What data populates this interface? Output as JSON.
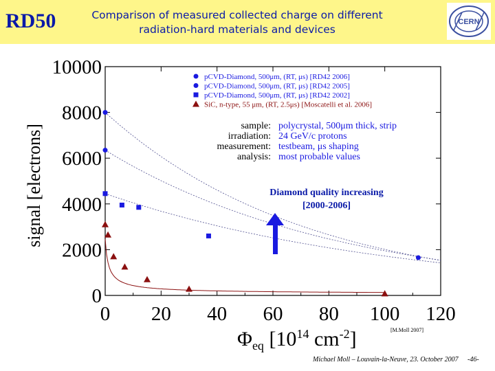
{
  "header": {
    "badge": "RD50",
    "title_line1": "Comparison of measured collected charge on different",
    "title_line2": "radiation-hard materials and devices",
    "logo_text": "CERN"
  },
  "footer": {
    "credit": "Michael Moll – Louvain-la-Neuve, 23. October 2007",
    "page": "-46-"
  },
  "colors": {
    "blue": "#1a1ae0",
    "darkred": "#8b1010",
    "header_bg": "#fef68a",
    "title_text": "#0a1aa8"
  },
  "chart_data": {
    "type": "scatter",
    "xlabel_base": "Φ",
    "xlabel_sub": "eq",
    "xlabel_rest": "  [10",
    "xlabel_sup": "14",
    "xlabel_unit": " cm",
    "xlabel_unit_sup": "-2",
    "xlabel_close": "]",
    "ylabel": "signal [electrons]",
    "xlim": [
      0,
      120
    ],
    "ylim": [
      0,
      10000
    ],
    "xticks": [
      "0",
      "20",
      "40",
      "60",
      "80",
      "100",
      "120"
    ],
    "yticks": [
      "0",
      "2000",
      "4000",
      "6000",
      "8000",
      "10000"
    ],
    "series": [
      {
        "name": "pCVD-Diamond, 500μm, (RT, μs) [RD42 2006]",
        "marker": "circle",
        "color": "#1a1ae0",
        "points": [
          [
            0,
            8000
          ],
          [
            112,
            1650
          ]
        ]
      },
      {
        "name": "pCVD-Diamond, 500μm, (RT, μs) [RD42 2005]",
        "marker": "circle",
        "color": "#1a1ae0",
        "points": [
          [
            0,
            6350
          ]
        ]
      },
      {
        "name": "pCVD-Diamond, 500μm, (RT, μs) [RD42 2002]",
        "marker": "square",
        "color": "#1a1ae0",
        "points": [
          [
            0,
            4450
          ],
          [
            6,
            3950
          ],
          [
            12,
            3850
          ],
          [
            37,
            2600
          ]
        ]
      },
      {
        "name": "SiC, n-type, 55 μm, (RT, 2.5μs) [Moscatelli et al. 2006]",
        "marker": "triangle",
        "color": "#8b1010",
        "points": [
          [
            0,
            3100
          ],
          [
            1,
            2650
          ],
          [
            3,
            1700
          ],
          [
            7,
            1250
          ],
          [
            15,
            700
          ],
          [
            30,
            280
          ],
          [
            100,
            80
          ]
        ]
      }
    ],
    "info": [
      {
        "label": "sample:",
        "value": "polycrystal, 500μm thick, strip"
      },
      {
        "label": "irradiation:",
        "value": "24 GeV/c protons"
      },
      {
        "label": "measurement:",
        "value": "testbeam, μs shaping"
      },
      {
        "label": "analysis:",
        "value": "most probable values"
      }
    ],
    "annotation_line1": "Diamond quality increasing",
    "annotation_line2": "[2000-2006]",
    "credit": "[M.Moll 2007]"
  }
}
